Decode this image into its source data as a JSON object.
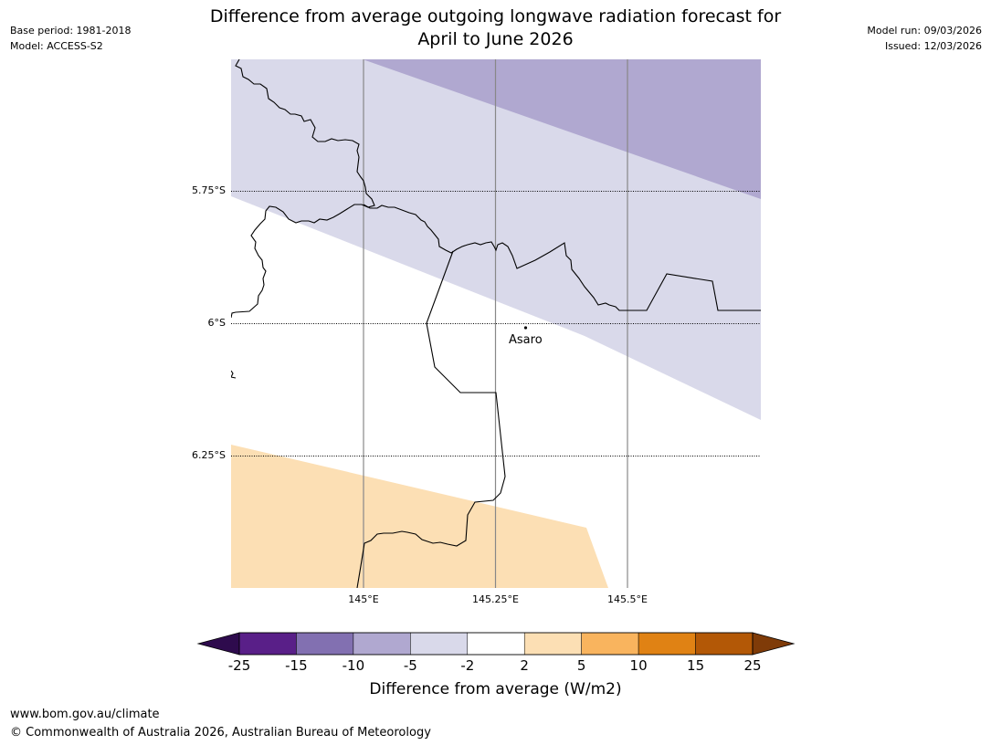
{
  "header": {
    "base_period": "Base period: 1981-2018",
    "model": "Model: ACCESS-S2",
    "model_run": "Model run: 09/03/2026",
    "issued": "Issued: 12/03/2026"
  },
  "title": {
    "line1": "Difference from average outgoing longwave radiation forecast for",
    "line2": "April to June 2026"
  },
  "map": {
    "lat_labels": [
      "5.75°S",
      "6°S",
      "6.25°S"
    ],
    "lon_labels": [
      "145°E",
      "145.25°E",
      "145.5°E"
    ],
    "place": {
      "name": "Asaro",
      "lat": -6.0,
      "lon": 145.3
    }
  },
  "colorbar": {
    "label": "Difference from average (W/m2)",
    "ticks": [
      "-25",
      "-15",
      "-10",
      "-5",
      "-2",
      "2",
      "5",
      "10",
      "15",
      "25"
    ],
    "colors": [
      "#591f88",
      "#8270b1",
      "#b0a8d0",
      "#d9d9ea",
      "#ffffff",
      "#fcdfb4",
      "#f9b45e",
      "#e08214",
      "#b35806"
    ],
    "under_color": "#2e0b4d",
    "over_color": "#7f3b08"
  },
  "footer": {
    "url": "www.bom.gov.au/climate",
    "copyright": "© Commonwealth of Australia 2026, Australian Bureau of Meteorology"
  }
}
